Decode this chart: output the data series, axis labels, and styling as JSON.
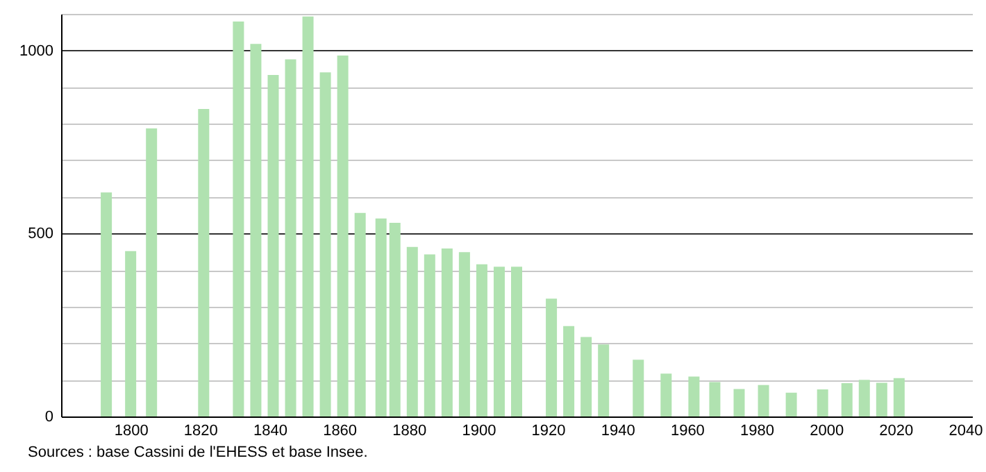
{
  "chart_data": {
    "type": "bar",
    "x": [
      1793,
      1800,
      1806,
      1821,
      1831,
      1836,
      1841,
      1846,
      1851,
      1856,
      1861,
      1866,
      1872,
      1876,
      1881,
      1886,
      1891,
      1896,
      1901,
      1906,
      1911,
      1921,
      1926,
      1931,
      1936,
      1946,
      1954,
      1962,
      1968,
      1975,
      1982,
      1990,
      1999,
      2006,
      2011,
      2016,
      2021
    ],
    "values": [
      612,
      452,
      787,
      840,
      1079,
      1018,
      933,
      976,
      1093,
      940,
      986,
      556,
      541,
      529,
      463,
      443,
      459,
      449,
      416,
      409,
      409,
      322,
      247,
      217,
      197,
      155,
      117,
      109,
      94,
      75,
      86,
      65,
      74,
      91,
      100,
      92,
      105
    ],
    "color": "#b0e2b0",
    "xlim": [
      1780,
      2042
    ],
    "xticks": [
      1800,
      1820,
      1840,
      1860,
      1880,
      1900,
      1920,
      1940,
      1960,
      1980,
      2000,
      2020,
      2040
    ],
    "ylim": [
      0,
      1100
    ],
    "yticks": [
      0,
      {
        "value": 100,
        "label": null
      },
      {
        "value": 200,
        "label": null
      },
      {
        "value": 300,
        "label": null
      },
      {
        "value": 400,
        "label": null
      },
      500,
      {
        "value": 600,
        "label": null
      },
      {
        "value": 700,
        "label": null
      },
      {
        "value": 800,
        "label": null
      },
      {
        "value": 900,
        "label": null
      },
      1000,
      {
        "value": 1100,
        "label": null
      }
    ],
    "grid": "y",
    "annotations": [
      "Sources : base Cassini de l'EHESS et base Insee."
    ]
  }
}
